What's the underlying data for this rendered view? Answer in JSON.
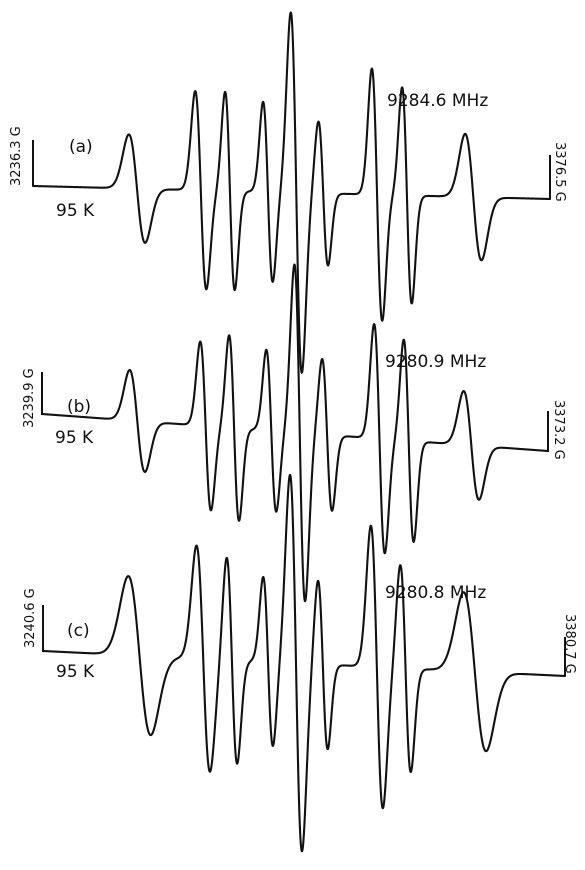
{
  "chart_data": [
    {
      "type": "line",
      "panel": "(a)",
      "temperature": "95 K",
      "frequency": "9284.6 MHz",
      "field_start": "3236.3 G",
      "field_end": "3376.5 G",
      "xlim_gauss": [
        3236.3,
        3376.5
      ],
      "ylabel": "",
      "lines": [
        {
          "center_gauss": 3264.5,
          "amplitude": 0.3,
          "width": 2.2
        },
        {
          "center_gauss": 3281.8,
          "amplitude": 0.55,
          "width": 1.5
        },
        {
          "center_gauss": 3289.7,
          "amplitude": 0.55,
          "width": 1.3
        },
        {
          "center_gauss": 3300.0,
          "amplitude": 0.5,
          "width": 1.3
        },
        {
          "center_gauss": 3307.7,
          "amplitude": 1.0,
          "width": 1.5
        },
        {
          "center_gauss": 3315.0,
          "amplitude": 0.4,
          "width": 1.3
        },
        {
          "center_gauss": 3329.6,
          "amplitude": 0.7,
          "width": 1.4
        },
        {
          "center_gauss": 3337.7,
          "amplitude": 0.6,
          "width": 1.3
        },
        {
          "center_gauss": 3355.7,
          "amplitude": 0.35,
          "width": 2.2
        }
      ]
    },
    {
      "type": "line",
      "panel": "(b)",
      "temperature": "95 K",
      "frequency": "9280.9 MHz",
      "field_start": "3239.9 G",
      "field_end": "3373.2 G",
      "xlim_gauss": [
        3239.9,
        3373.2
      ],
      "ylabel": "",
      "lines": [
        {
          "center_gauss": 3265.0,
          "amplitude": 0.3,
          "width": 2.0
        },
        {
          "center_gauss": 3283.0,
          "amplitude": 0.5,
          "width": 1.4
        },
        {
          "center_gauss": 3290.5,
          "amplitude": 0.55,
          "width": 1.3
        },
        {
          "center_gauss": 3300.3,
          "amplitude": 0.48,
          "width": 1.3
        },
        {
          "center_gauss": 3307.8,
          "amplitude": 1.0,
          "width": 1.4
        },
        {
          "center_gauss": 3315.0,
          "amplitude": 0.45,
          "width": 1.3
        },
        {
          "center_gauss": 3328.8,
          "amplitude": 0.68,
          "width": 1.4
        },
        {
          "center_gauss": 3336.5,
          "amplitude": 0.6,
          "width": 1.3
        },
        {
          "center_gauss": 3353.0,
          "amplitude": 0.32,
          "width": 2.0
        }
      ]
    },
    {
      "type": "line",
      "panel": "(c)",
      "temperature": "95 K",
      "frequency": "9280.8 MHz",
      "field_start": "3240.6 G",
      "field_end": "3380.7 G",
      "xlim_gauss": [
        3240.6,
        3380.7
      ],
      "ylabel": "",
      "lines": [
        {
          "center_gauss": 3266.5,
          "amplitude": 0.42,
          "width": 3.0
        },
        {
          "center_gauss": 3283.6,
          "amplitude": 0.6,
          "width": 1.8
        },
        {
          "center_gauss": 3291.3,
          "amplitude": 0.55,
          "width": 1.4
        },
        {
          "center_gauss": 3301.0,
          "amplitude": 0.45,
          "width": 1.3
        },
        {
          "center_gauss": 3308.5,
          "amplitude": 1.0,
          "width": 1.6
        },
        {
          "center_gauss": 3315.7,
          "amplitude": 0.45,
          "width": 1.3
        },
        {
          "center_gauss": 3330.2,
          "amplitude": 0.75,
          "width": 1.6
        },
        {
          "center_gauss": 3337.9,
          "amplitude": 0.55,
          "width": 1.4
        },
        {
          "center_gauss": 3356.5,
          "amplitude": 0.42,
          "width": 3.0
        }
      ]
    }
  ]
}
